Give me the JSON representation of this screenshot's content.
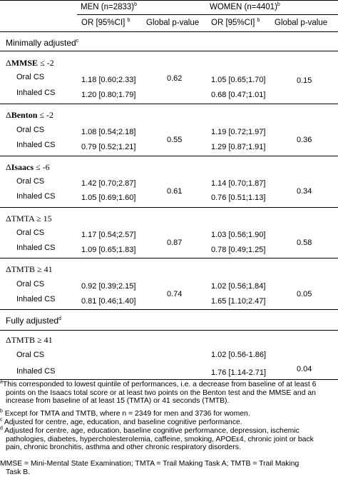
{
  "header": {
    "men_label": "MEN (n=2833)",
    "men_sup": "b",
    "women_label": "WOMEN (n=4401)",
    "women_sup": "b",
    "or_label": "OR [95%CI]",
    "or_sup": "b",
    "p_label": "Global p-value"
  },
  "sections": {
    "minimal": {
      "label": "Minimally adjusted",
      "sup": "c"
    },
    "full": {
      "label": "Fully adjusted",
      "sup": "d"
    }
  },
  "groups": [
    {
      "delta": "Δ",
      "name": "MMSE",
      "op": "≤ -2",
      "rows": [
        {
          "label": "Oral CS",
          "men_or": "1.18 [0.60;2.33]",
          "women_or": "1.05 [0.65;1.70]"
        },
        {
          "label": "Inhaled CS",
          "men_or": "1.20 [0.80;1.79]",
          "women_or": "0.68 [0.47;1.01]"
        }
      ],
      "men_p": "0.62",
      "women_p": "0.15"
    },
    {
      "delta": "Δ",
      "name": "Benton",
      "op": "≤ -2",
      "rows": [
        {
          "label": "Oral CS",
          "men_or": "1.08 [0.54;2.18]",
          "women_or": "1.19 [0.72;1.97]"
        },
        {
          "label": "Inhaled CS",
          "men_or": "0.79 [0.52;1.21]",
          "women_or": "1.29 [0.87;1.91]"
        }
      ],
      "men_p": "0.55",
      "women_p": "0.36"
    },
    {
      "delta": "Δ",
      "name": "Isaacs",
      "op": "≤ -6",
      "rows": [
        {
          "label": "Oral CS",
          "men_or": "1.42 [0.70;2.87]",
          "women_or": "1.14 [0.70;1.87]"
        },
        {
          "label": "Inhaled CS",
          "men_or": "1.05 [0.69;1.60]",
          "women_or": "0.76 [0.51;1.13]"
        }
      ],
      "men_p": "0.61",
      "women_p": "0.34"
    },
    {
      "delta": "Δ",
      "name": "TMTA",
      "op": "≥ 15",
      "rows": [
        {
          "label": "Oral CS",
          "men_or": "1.17 [0.54;2.57]",
          "women_or": "1.03 [0.56;1.90]"
        },
        {
          "label": "Inhaled CS",
          "men_or": "1.09 [0.65;1.83]",
          "women_or": "0.78 [0.49;1.25]"
        }
      ],
      "men_p": "0.87",
      "women_p": "0.58"
    },
    {
      "delta": "Δ",
      "name": "TMTB",
      "op": "≥ 41",
      "rows": [
        {
          "label": "Oral CS",
          "men_or": "0.92 [0.39;2.15]",
          "women_or": "1.02 [0.56;1.84]"
        },
        {
          "label": "Inhaled CS",
          "men_or": "0.81 [0.46;1.40]",
          "women_or": "1.65 [1.10;2.47]"
        }
      ],
      "men_p": "0.74",
      "women_p": "0.05"
    }
  ],
  "full_group": {
    "delta": "Δ",
    "name": "TMTB",
    "op": "≥ 41",
    "rows": [
      {
        "label": "Oral CS",
        "women_or": "1.02 [0.56-1.86]"
      },
      {
        "label": "Inhaled CS",
        "women_or": "1.76 [1.14-2.71]"
      }
    ],
    "women_p": "0.04"
  },
  "footnotes": {
    "a_mark": "a",
    "a_line1": "This corresponded to lowest quintile of performances, i.e. a decrease from baseline of at least 6",
    "a_line2": "points on the Isaacs total score or at least two points on the Benton test and the MMSE and an",
    "a_line3": "increase from baseline of at least 15 (TMTA) or 41 seconds (TMTB).",
    "b_mark": "b",
    "b_text": " Except for TMTA and TMTB, where n = 2349 for men and 3736 for women.",
    "c_mark": "c",
    "c_text": " Adjusted for centre, age, education, and baseline cognitive performance.",
    "d_mark": "d",
    "d_line1": " Adjusted for centre, age, education, baseline cognitive performance, depression, ischemic",
    "d_line2": "pathologies, diabetes, hypercholesterolemia, caffeine, smoking, APOEε4, chronic joint or back",
    "d_line3": "pain, chronic bronchitis, asthma and other chronic respiratory disorders.",
    "abbr_line1": "MMSE = Mini-Mental State Examination; TMTA = Trail Making Task A; TMTB = Trail Making",
    "abbr_line2": "Task B."
  }
}
